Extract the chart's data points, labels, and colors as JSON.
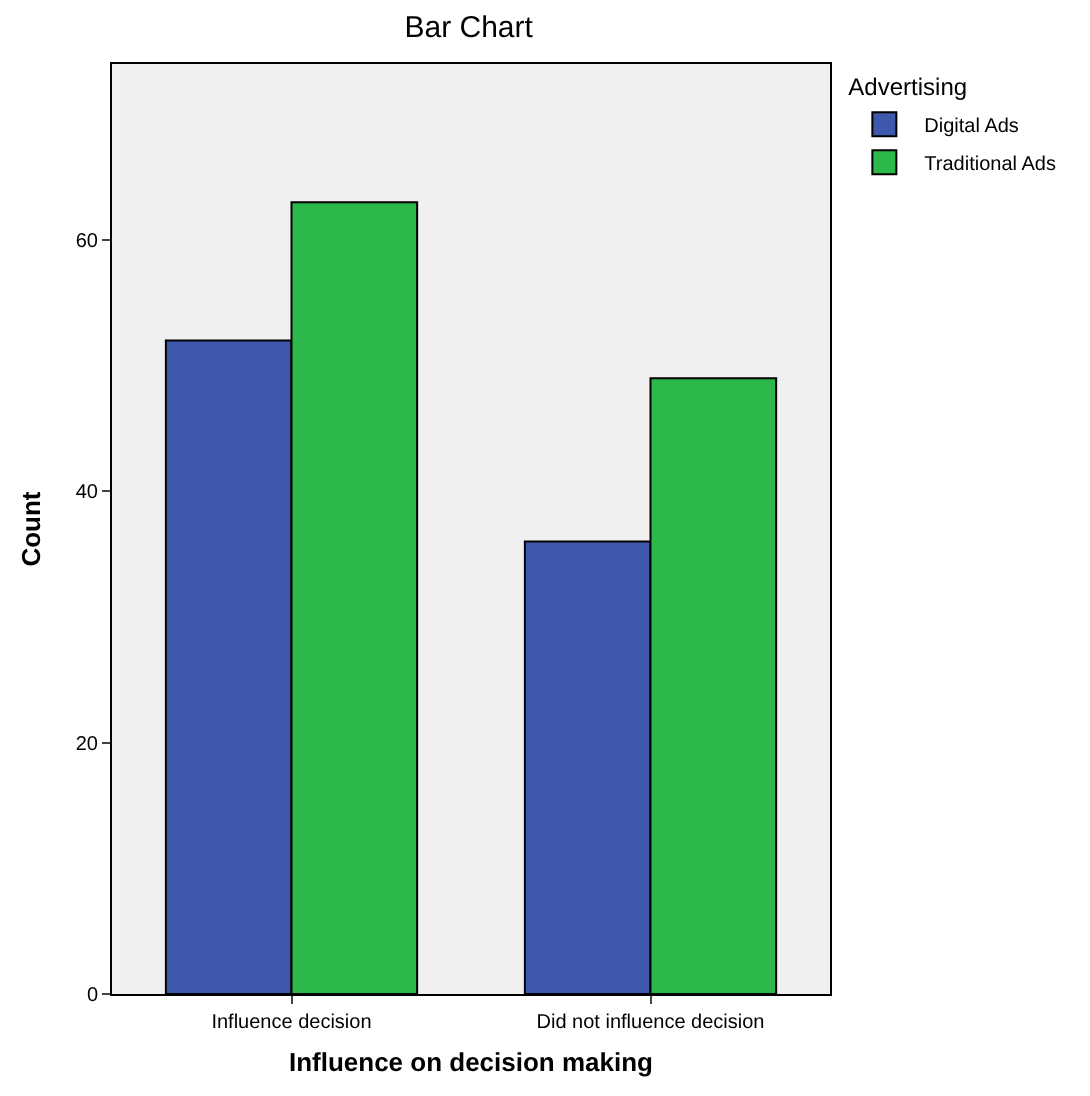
{
  "chart_data": {
    "type": "bar",
    "title": "Bar Chart",
    "xlabel": "Influence on decision making",
    "ylabel": "Count",
    "legend_title": "Advertising",
    "categories": [
      "Influence decision",
      "Did not influence decision"
    ],
    "series": [
      {
        "name": "Digital Ads",
        "color": "#3e58ac",
        "values": [
          52,
          36
        ]
      },
      {
        "name": "Traditional Ads",
        "color": "#2db84b",
        "values": [
          63,
          49
        ]
      }
    ],
    "ylim": [
      0,
      74
    ],
    "yticks": [
      0,
      20,
      40,
      60
    ],
    "grid": false,
    "legend": "top right"
  }
}
